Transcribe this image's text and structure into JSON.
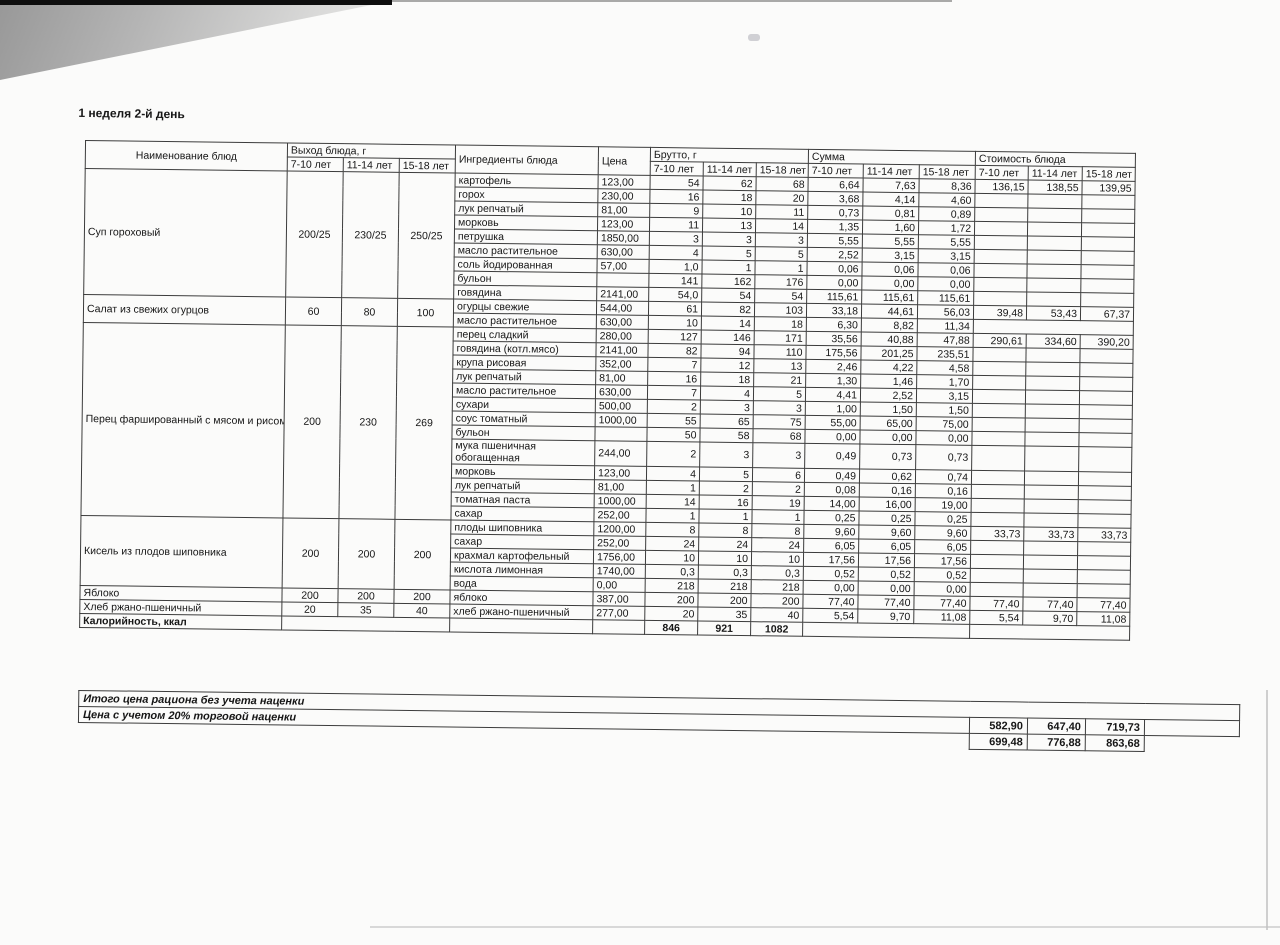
{
  "page": {
    "title": "1 неделя 2-й день"
  },
  "colors": {
    "border": "#3c3c3c",
    "text": "#161616",
    "paper": "#fbfbfa",
    "scanner_shadow": "#989898"
  },
  "table": {
    "headers": {
      "name": "Наименование блюд",
      "output": "Выход блюда, г",
      "ingredients": "Ингредиенты блюда",
      "price": "Цена",
      "gross": "Брутто, г",
      "sum": "Сумма",
      "cost": "Стоимость блюда",
      "age_groups": [
        "7-10 лет",
        "11-14 лет",
        "15-18 лет"
      ]
    },
    "dishes": [
      {
        "name": "Суп гороховый",
        "output": [
          "200/25",
          "230/25",
          "250/25"
        ],
        "cost": [
          "136,15",
          "138,55",
          "139,95"
        ],
        "ingredients": [
          {
            "name": "картофель",
            "price": "123,00",
            "gross": [
              "54",
              "62",
              "68"
            ],
            "sum": [
              "6,64",
              "7,63",
              "8,36"
            ]
          },
          {
            "name": "горох",
            "price": "230,00",
            "gross": [
              "16",
              "18",
              "20"
            ],
            "sum": [
              "3,68",
              "4,14",
              "4,60"
            ]
          },
          {
            "name": "лук репчатый",
            "price": "81,00",
            "gross": [
              "9",
              "10",
              "11"
            ],
            "sum": [
              "0,73",
              "0,81",
              "0,89"
            ]
          },
          {
            "name": "морковь",
            "price": "123,00",
            "gross": [
              "11",
              "13",
              "14"
            ],
            "sum": [
              "1,35",
              "1,60",
              "1,72"
            ]
          },
          {
            "name": "петрушка",
            "price": "1850,00",
            "gross": [
              "3",
              "3",
              "3"
            ],
            "sum": [
              "5,55",
              "5,55",
              "5,55"
            ]
          },
          {
            "name": "масло растительное",
            "price": "630,00",
            "gross": [
              "4",
              "5",
              "5"
            ],
            "sum": [
              "2,52",
              "3,15",
              "3,15"
            ]
          },
          {
            "name": "соль йодированная",
            "price": "57,00",
            "gross": [
              "1,0",
              "1",
              "1"
            ],
            "sum": [
              "0,06",
              "0,06",
              "0,06"
            ]
          },
          {
            "name": "бульон",
            "price": "",
            "gross": [
              "141",
              "162",
              "176"
            ],
            "sum": [
              "0,00",
              "0,00",
              "0,00"
            ]
          },
          {
            "name": "говядина",
            "price": "2141,00",
            "gross": [
              "54,0",
              "54",
              "54"
            ],
            "sum": [
              "115,61",
              "115,61",
              "115,61"
            ]
          }
        ]
      },
      {
        "name": "Салат из свежих огурцов",
        "output": [
          "60",
          "80",
          "100"
        ],
        "cost": [
          "39,48",
          "53,43",
          "67,37"
        ],
        "ingredients": [
          {
            "name": "огурцы свежие",
            "price": "544,00",
            "gross": [
              "61",
              "82",
              "103"
            ],
            "sum": [
              "33,18",
              "44,61",
              "56,03"
            ]
          },
          {
            "name": "масло растительное",
            "price": "630,00",
            "gross": [
              "10",
              "14",
              "18"
            ],
            "sum": [
              "6,30",
              "8,82",
              "11,34"
            ]
          }
        ]
      },
      {
        "name": "Перец фаршированный с мясом и рисом",
        "output": [
          "200",
          "230",
          "269"
        ],
        "cost": [
          "290,61",
          "334,60",
          "390,20"
        ],
        "ingredients": [
          {
            "name": "перец сладкий",
            "price": "280,00",
            "gross": [
              "127",
              "146",
              "171"
            ],
            "sum": [
              "35,56",
              "40,88",
              "47,88"
            ]
          },
          {
            "name": "говядина (котл.мясо)",
            "price": "2141,00",
            "gross": [
              "82",
              "94",
              "110"
            ],
            "sum": [
              "175,56",
              "201,25",
              "235,51"
            ]
          },
          {
            "name": "крупа рисовая",
            "price": "352,00",
            "gross": [
              "7",
              "12",
              "13"
            ],
            "sum": [
              "2,46",
              "4,22",
              "4,58"
            ]
          },
          {
            "name": "лук репчатый",
            "price": "81,00",
            "gross": [
              "16",
              "18",
              "21"
            ],
            "sum": [
              "1,30",
              "1,46",
              "1,70"
            ]
          },
          {
            "name": "масло растительное",
            "price": "630,00",
            "gross": [
              "7",
              "4",
              "5"
            ],
            "sum": [
              "4,41",
              "2,52",
              "3,15"
            ]
          },
          {
            "name": "сухари",
            "price": "500,00",
            "gross": [
              "2",
              "3",
              "3"
            ],
            "sum": [
              "1,00",
              "1,50",
              "1,50"
            ]
          },
          {
            "name": "соус томатный",
            "price": "1000,00",
            "gross": [
              "55",
              "65",
              "75"
            ],
            "sum": [
              "55,00",
              "65,00",
              "75,00"
            ]
          },
          {
            "name": "бульон",
            "price": "",
            "gross": [
              "50",
              "58",
              "68"
            ],
            "sum": [
              "0,00",
              "0,00",
              "0,00"
            ]
          },
          {
            "name": "мука пшеничная обогащенная",
            "price": "244,00",
            "gross": [
              "2",
              "3",
              "3"
            ],
            "sum": [
              "0,49",
              "0,73",
              "0,73"
            ]
          },
          {
            "name": "морковь",
            "price": "123,00",
            "gross": [
              "4",
              "5",
              "6"
            ],
            "sum": [
              "0,49",
              "0,62",
              "0,74"
            ]
          },
          {
            "name": "лук репчатый",
            "price": "81,00",
            "gross": [
              "1",
              "2",
              "2"
            ],
            "sum": [
              "0,08",
              "0,16",
              "0,16"
            ]
          },
          {
            "name": "томатная паста",
            "price": "1000,00",
            "gross": [
              "14",
              "16",
              "19"
            ],
            "sum": [
              "14,00",
              "16,00",
              "19,00"
            ]
          },
          {
            "name": "сахар",
            "price": "252,00",
            "gross": [
              "1",
              "1",
              "1"
            ],
            "sum": [
              "0,25",
              "0,25",
              "0,25"
            ]
          }
        ]
      },
      {
        "name": "Кисель из плодов шиповника",
        "output": [
          "200",
          "200",
          "200"
        ],
        "cost": [
          "33,73",
          "33,73",
          "33,73"
        ],
        "ingredients": [
          {
            "name": "плоды шиповника",
            "price": "1200,00",
            "gross": [
              "8",
              "8",
              "8"
            ],
            "sum": [
              "9,60",
              "9,60",
              "9,60"
            ]
          },
          {
            "name": "сахар",
            "price": "252,00",
            "gross": [
              "24",
              "24",
              "24"
            ],
            "sum": [
              "6,05",
              "6,05",
              "6,05"
            ]
          },
          {
            "name": "крахмал картофельный",
            "price": "1756,00",
            "gross": [
              "10",
              "10",
              "10"
            ],
            "sum": [
              "17,56",
              "17,56",
              "17,56"
            ]
          },
          {
            "name": "кислота лимонная",
            "price": "1740,00",
            "gross": [
              "0,3",
              "0,3",
              "0,3"
            ],
            "sum": [
              "0,52",
              "0,52",
              "0,52"
            ]
          },
          {
            "name": "вода",
            "price": "0,00",
            "gross": [
              "218",
              "218",
              "218"
            ],
            "sum": [
              "0,00",
              "0,00",
              "0,00"
            ]
          }
        ]
      },
      {
        "name": "Яблоко",
        "output": [
          "200",
          "200",
          "200"
        ],
        "cost": [
          "77,40",
          "77,40",
          "77,40"
        ],
        "ingredients": [
          {
            "name": "яблоко",
            "price": "387,00",
            "gross": [
              "200",
              "200",
              "200"
            ],
            "sum": [
              "77,40",
              "77,40",
              "77,40"
            ]
          }
        ]
      },
      {
        "name": "Хлеб ржано-пшеничный",
        "output": [
          "20",
          "35",
          "40"
        ],
        "cost": [
          "5,54",
          "9,70",
          "11,08"
        ],
        "ingredients": [
          {
            "name": "хлеб ржано-пшеничный",
            "price": "277,00",
            "gross": [
              "20",
              "35",
              "40"
            ],
            "sum": [
              "5,54",
              "9,70",
              "11,08"
            ]
          }
        ]
      }
    ],
    "calories_row": {
      "label": "Калорийность, ккал",
      "values": [
        "846",
        "921",
        "1082"
      ]
    }
  },
  "totals": {
    "rows": [
      {
        "label": "Итого цена рациона без учета наценки",
        "values": [
          "",
          "",
          ""
        ]
      },
      {
        "label": "Цена с учетом 20% торговой наценки",
        "values": [
          "582,90",
          "647,40",
          "719,73"
        ]
      },
      {
        "label": "",
        "values": [
          "699,48",
          "776,88",
          "863,68"
        ]
      }
    ]
  }
}
